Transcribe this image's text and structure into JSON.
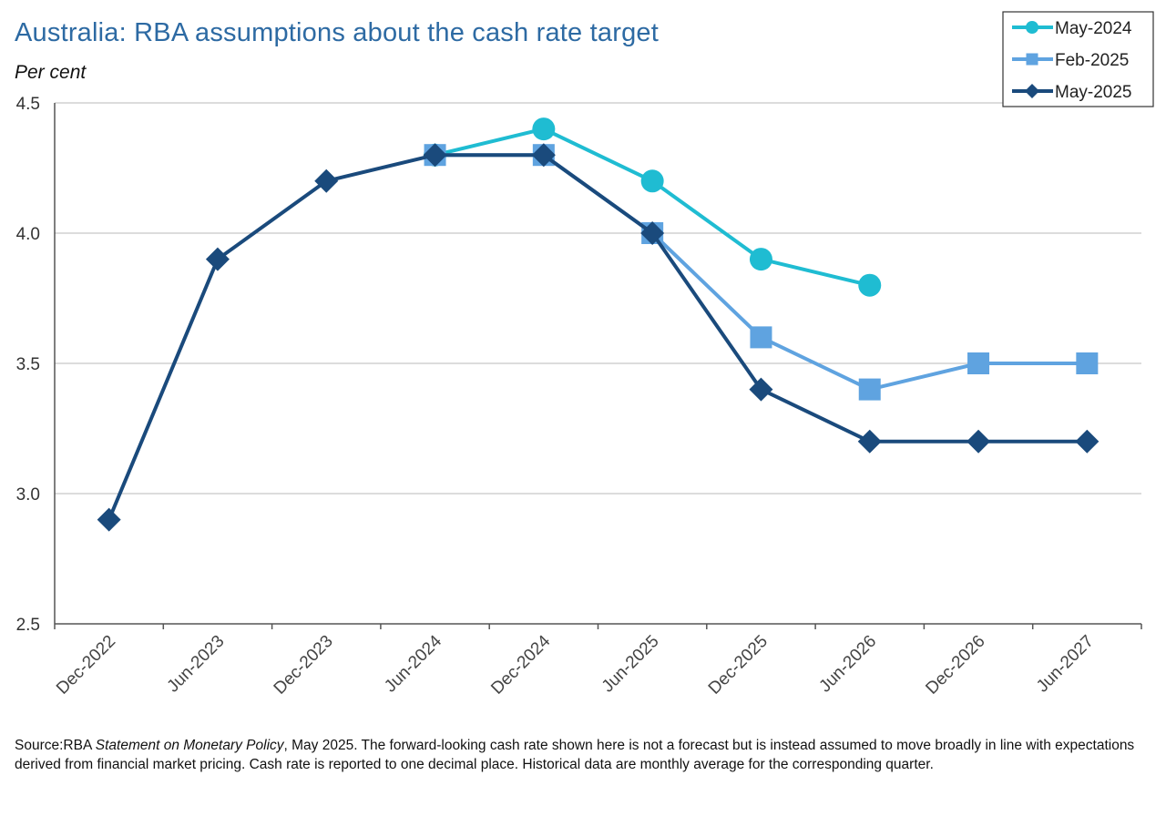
{
  "title": "Australia: RBA assumptions about the cash rate target",
  "subtitle": "Per cent",
  "source": {
    "prefix": "Source:RBA ",
    "publication": "Statement on Monetary Policy",
    "rest": ", May 2025. The forward-looking cash rate shown here is not a forecast but is instead assumed to move broadly in line with expectations derived from financial market pricing. Cash rate is reported to one decimal place. Historical data are monthly average for the corresponding quarter."
  },
  "chart_data": {
    "type": "line",
    "title": "Australia: RBA assumptions about the cash rate target",
    "ylabel": "Per cent",
    "xlabel": "",
    "ylim": [
      2.5,
      4.5
    ],
    "yticks": [
      "2.5",
      "3.0",
      "3.5",
      "4.0",
      "4.5"
    ],
    "categories": [
      "Dec-2022",
      "Jun-2023",
      "Dec-2023",
      "Jun-2024",
      "Dec-2024",
      "Jun-2025",
      "Dec-2025",
      "Jun-2026",
      "Dec-2026",
      "Jun-2027"
    ],
    "grid": true,
    "legend_position": "top-right",
    "series": [
      {
        "name": "May-2024",
        "color": "#1fbcd2",
        "marker": "circle",
        "values": [
          null,
          null,
          null,
          4.3,
          4.4,
          4.2,
          3.9,
          3.8,
          null,
          null
        ]
      },
      {
        "name": "Feb-2025",
        "color": "#5fa3e0",
        "marker": "square",
        "values": [
          null,
          null,
          null,
          4.3,
          4.3,
          4.0,
          3.6,
          3.4,
          3.5,
          3.5
        ]
      },
      {
        "name": "May-2025",
        "color": "#1a4a7c",
        "marker": "diamond",
        "values": [
          2.9,
          3.9,
          4.2,
          4.3,
          4.3,
          4.0,
          3.4,
          3.2,
          3.2,
          3.2
        ]
      }
    ]
  }
}
